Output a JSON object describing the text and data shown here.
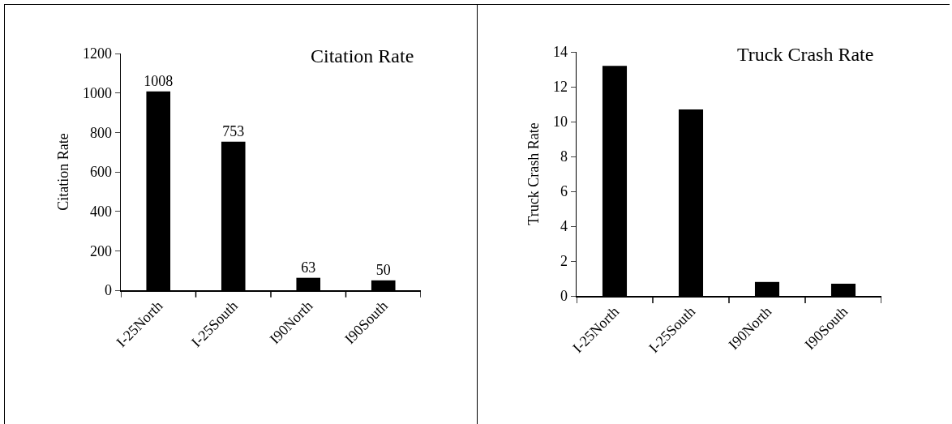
{
  "chart_data": [
    {
      "type": "bar",
      "title": "Citation Rate",
      "ylabel": "Citation Rate",
      "categories": [
        "I-25North",
        "I-25South",
        "I90North",
        "I90South"
      ],
      "values": [
        1008,
        753,
        63,
        50
      ],
      "color": "#000000",
      "ylim": [
        0,
        1200
      ],
      "yticks": [
        0,
        200,
        400,
        600,
        800,
        1000,
        1200
      ],
      "grid": false,
      "data_labels": true
    },
    {
      "type": "bar",
      "title": "Truck Crash Rate",
      "ylabel": "Truck Crash Rate",
      "categories": [
        "I-25North",
        "I-25South",
        "I90North",
        "I90South"
      ],
      "values": [
        13.2,
        10.7,
        0.8,
        0.7
      ],
      "color": "#000000",
      "ylim": [
        0,
        14
      ],
      "yticks": [
        0,
        2,
        4,
        6,
        8,
        10,
        12,
        14
      ],
      "grid": false
    }
  ]
}
